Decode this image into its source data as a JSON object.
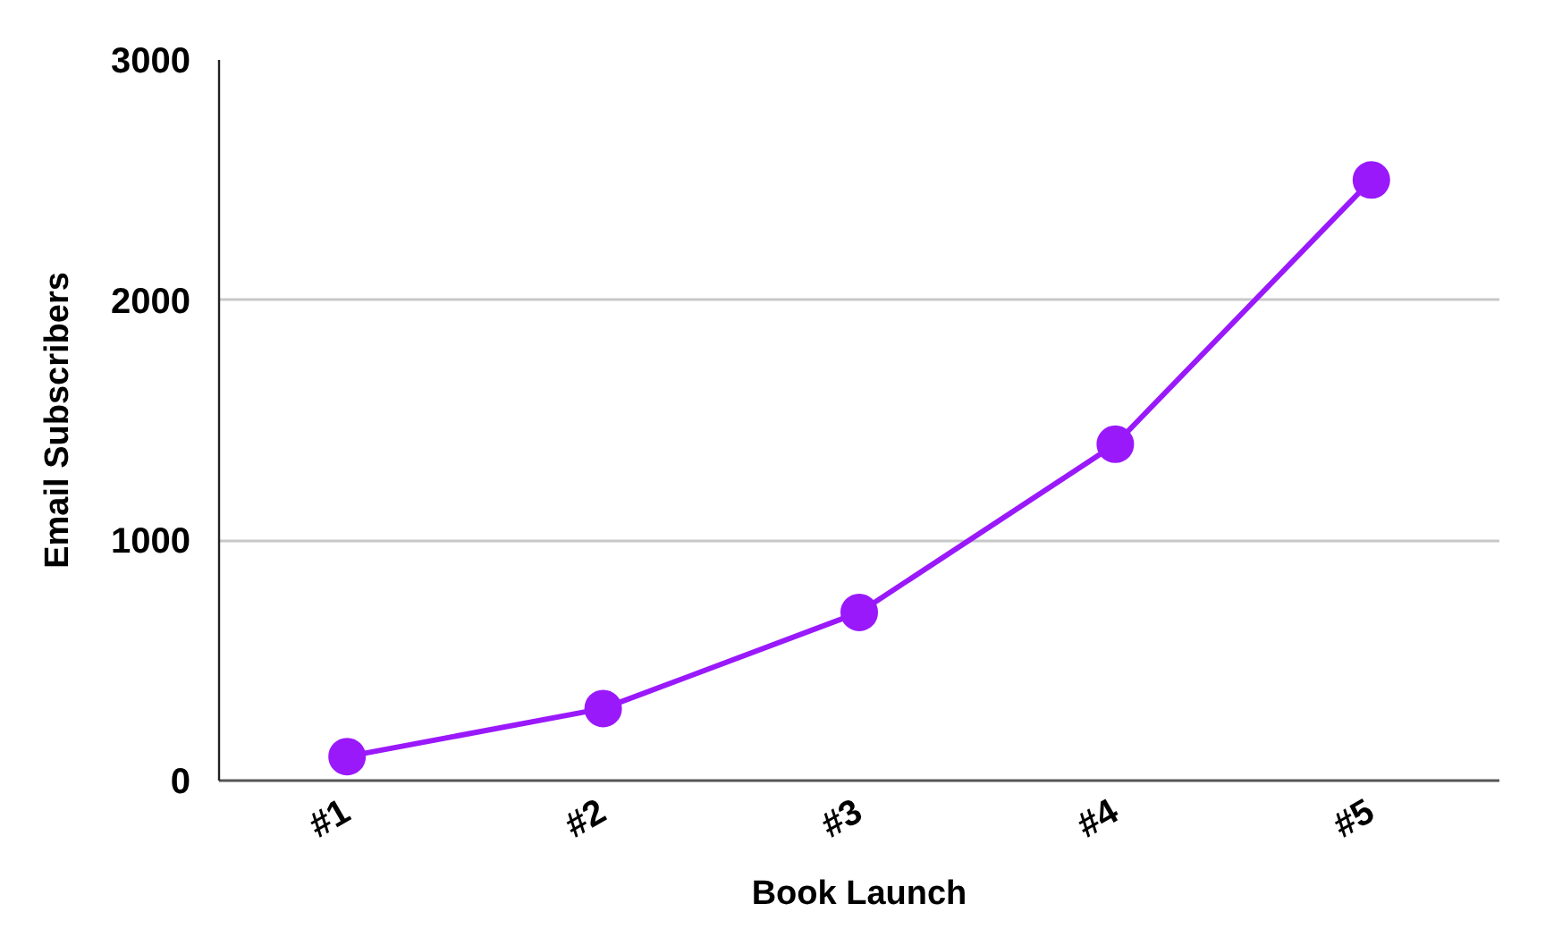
{
  "chart_data": {
    "type": "line",
    "xlabel": "Book Launch",
    "ylabel": "Email Subscribers",
    "categories": [
      "#1",
      "#2",
      "#3",
      "#4",
      "#5"
    ],
    "series": [
      {
        "color": "#9a19fb",
        "values": [
          100,
          300,
          700,
          1400,
          2500
        ]
      }
    ],
    "ylim": [
      0,
      3000
    ],
    "yticks": [
      0,
      1000,
      2000,
      3000
    ],
    "grid": "y",
    "marker": "circle",
    "line_style": "solid"
  }
}
